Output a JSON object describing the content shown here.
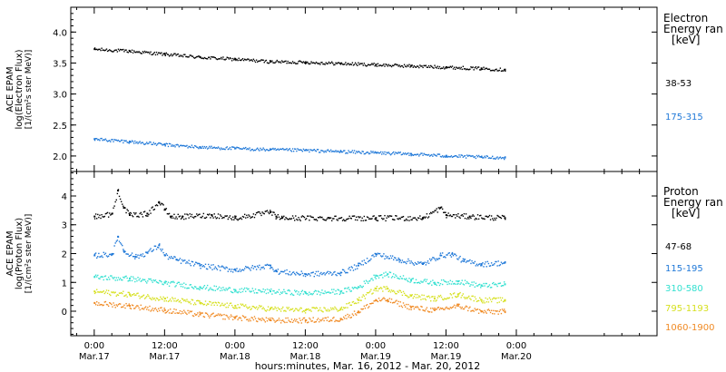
{
  "xaxis": {
    "title": "hours:minutes, Mar. 16, 2012 - Mar. 20, 2012",
    "range_hours": [
      -4,
      96
    ],
    "ticks": [
      {
        "h": 0,
        "time": "0:00",
        "date": "Mar.17"
      },
      {
        "h": 12,
        "time": "12:00",
        "date": "Mar.17"
      },
      {
        "h": 24,
        "time": "0:00",
        "date": "Mar.18"
      },
      {
        "h": 36,
        "time": "12:00",
        "date": "Mar.18"
      },
      {
        "h": 48,
        "time": "0:00",
        "date": "Mar.19"
      },
      {
        "h": 60,
        "time": "12:00",
        "date": "Mar.19"
      },
      {
        "h": 72,
        "time": "0:00",
        "date": "Mar.20"
      }
    ],
    "minor_step_hours": 3
  },
  "chart_data": [
    {
      "type": "scatter",
      "panel": "electron",
      "ylabel_lines": [
        "ACE EPAM",
        "log(Electron Flux)",
        "[1/(cm²s ster MeV)]"
      ],
      "ylim": [
        1.75,
        4.4
      ],
      "yticks": [
        2.0,
        2.5,
        3.0,
        3.5,
        4.0
      ],
      "ytick_labels": [
        "2.0",
        "2.5",
        "3.0",
        "3.5",
        "4.0"
      ],
      "legend_title_lines": [
        "Electron",
        "Energy ran",
        "[keV]"
      ],
      "series": [
        {
          "name": "38-53",
          "color": "#000000",
          "x": [
            0,
            6,
            12,
            18,
            24,
            30,
            36,
            42,
            48,
            54,
            60,
            66,
            70
          ],
          "y": [
            3.73,
            3.7,
            3.65,
            3.6,
            3.57,
            3.53,
            3.52,
            3.5,
            3.48,
            3.46,
            3.44,
            3.42,
            3.4
          ]
        },
        {
          "name": "175-315",
          "color": "#1f78d8",
          "x": [
            0,
            6,
            12,
            18,
            24,
            30,
            36,
            42,
            48,
            54,
            60,
            66,
            70
          ],
          "y": [
            2.28,
            2.24,
            2.19,
            2.15,
            2.13,
            2.11,
            2.1,
            2.08,
            2.06,
            2.04,
            2.01,
            1.99,
            1.98
          ]
        }
      ]
    },
    {
      "type": "scatter",
      "panel": "proton",
      "ylabel_lines": [
        "ACE EPAM",
        "log(Proton Flux)",
        "[1/(cm²s ster MeV)]"
      ],
      "ylim": [
        -0.85,
        4.85
      ],
      "yticks": [
        0,
        1,
        2,
        3,
        4
      ],
      "ytick_labels": [
        "0",
        "1",
        "2",
        "3",
        "4"
      ],
      "legend_title_lines": [
        "Proton",
        "Energy ran",
        "[keV]"
      ],
      "series": [
        {
          "name": "47-68",
          "color": "#000000",
          "x": [
            0,
            3,
            4,
            5,
            6,
            9,
            11,
            12,
            13,
            15,
            20,
            24,
            30,
            31,
            32,
            40,
            48,
            56,
            59,
            60,
            64,
            70
          ],
          "y": [
            3.3,
            3.4,
            4.2,
            3.6,
            3.35,
            3.4,
            3.8,
            3.55,
            3.3,
            3.3,
            3.35,
            3.25,
            3.45,
            3.3,
            3.25,
            3.25,
            3.25,
            3.25,
            3.6,
            3.35,
            3.3,
            3.25
          ]
        },
        {
          "name": "115-195",
          "color": "#1f78d8",
          "x": [
            0,
            3,
            4,
            5,
            7,
            9,
            11,
            12,
            14,
            18,
            24,
            30,
            31,
            36,
            42,
            45,
            48,
            52,
            56,
            59,
            61,
            63,
            66,
            70
          ],
          "y": [
            1.95,
            2.0,
            2.6,
            2.1,
            1.9,
            2.05,
            2.3,
            1.95,
            1.8,
            1.6,
            1.45,
            1.6,
            1.4,
            1.3,
            1.35,
            1.6,
            2.0,
            1.8,
            1.65,
            1.95,
            2.0,
            1.75,
            1.65,
            1.7
          ]
        },
        {
          "name": "310-580",
          "color": "#33e0d0",
          "x": [
            0,
            6,
            12,
            18,
            24,
            30,
            36,
            42,
            45,
            48,
            50,
            54,
            58,
            62,
            66,
            70
          ],
          "y": [
            1.2,
            1.15,
            1.0,
            0.85,
            0.75,
            0.7,
            0.65,
            0.7,
            0.85,
            1.25,
            1.3,
            1.1,
            1.0,
            1.05,
            0.9,
            0.95
          ]
        },
        {
          "name": "795-1193",
          "color": "#d6e020",
          "x": [
            0,
            6,
            12,
            18,
            24,
            30,
            36,
            42,
            45,
            48,
            50,
            54,
            58,
            62,
            66,
            70
          ],
          "y": [
            0.7,
            0.6,
            0.45,
            0.3,
            0.2,
            0.1,
            0.05,
            0.1,
            0.4,
            0.8,
            0.8,
            0.55,
            0.45,
            0.6,
            0.4,
            0.4
          ]
        },
        {
          "name": "1060-1900",
          "color": "#f08a24",
          "x": [
            0,
            6,
            12,
            18,
            24,
            30,
            36,
            42,
            45,
            48,
            50,
            54,
            58,
            62,
            66,
            70
          ],
          "y": [
            0.3,
            0.2,
            0.05,
            -0.1,
            -0.2,
            -0.3,
            -0.3,
            -0.25,
            0.0,
            0.4,
            0.4,
            0.15,
            0.05,
            0.2,
            0.0,
            0.0
          ]
        }
      ]
    }
  ]
}
